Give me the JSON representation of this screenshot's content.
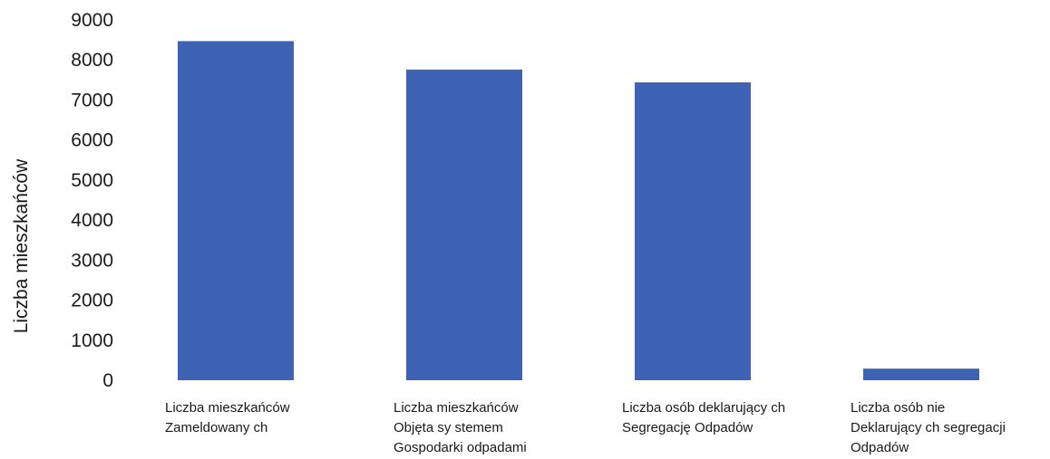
{
  "chart_data": {
    "type": "bar",
    "title": "",
    "xlabel": "",
    "ylabel": "Liczba mieszkańców",
    "ylim": [
      0,
      9000
    ],
    "yticks": [
      0,
      1000,
      2000,
      3000,
      4000,
      5000,
      6000,
      7000,
      8000,
      9000
    ],
    "grid": false,
    "bar_color": "#3f63b4",
    "categories": [
      [
        "Liczba mieszkańców",
        "Zameldowany ch"
      ],
      [
        "Liczba mieszkańców",
        "Objęta sy stemem",
        "Gospodarki odpadami"
      ],
      [
        "Liczba osób deklarujący ch",
        "Segregację Odpadów"
      ],
      [
        "Liczba osób nie",
        "Deklarujący ch segregacji",
        "Odpadów"
      ]
    ],
    "values": [
      8470,
      7760,
      7440,
      290
    ]
  }
}
